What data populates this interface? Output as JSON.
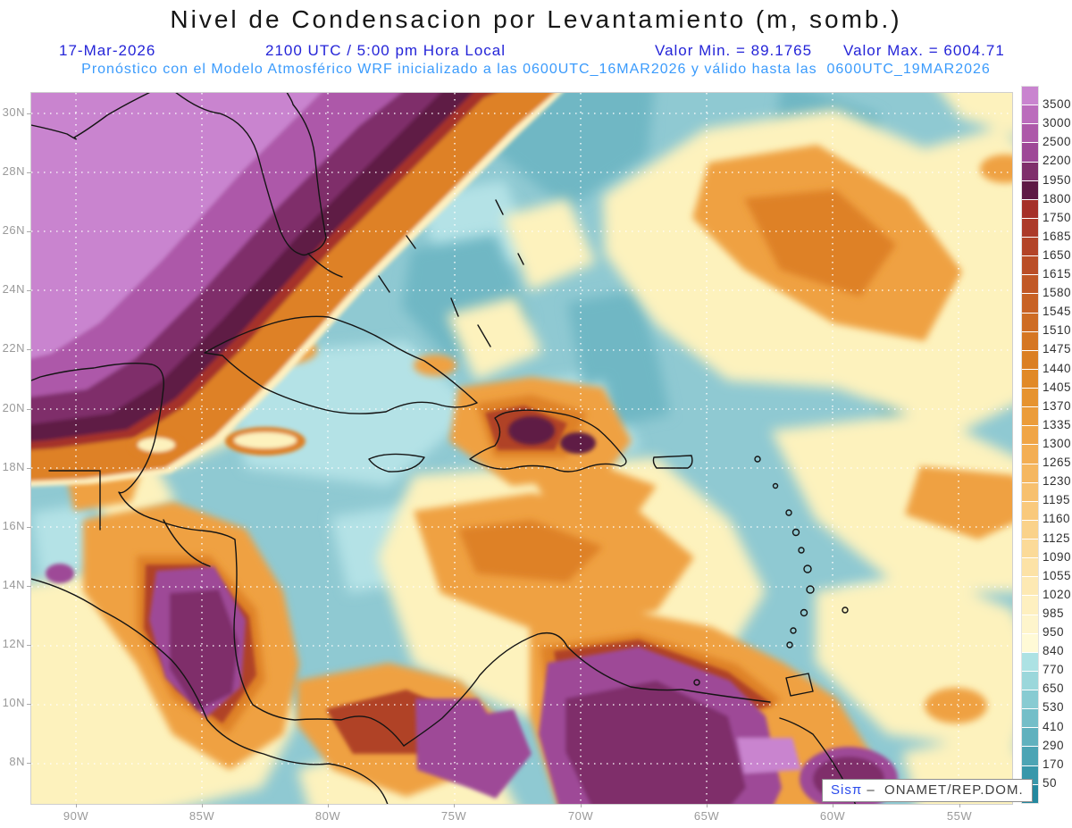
{
  "title": "Nivel de Condensacion por Levantamiento (m, somb.)",
  "header": {
    "date": "17-Mar-2026",
    "time": "2100 UTC / 5:00 pm Hora Local",
    "val_min": "Valor Min. = 89.1765",
    "val_max": "Valor Max. = 6004.71",
    "forecast": "Pronóstico con el Modelo Atmosférico WRF inicializado a las 0600UTC_16MAR2026 y válido hasta las  0600UTC_19MAR2026"
  },
  "axes": {
    "lat": [
      "30N",
      "28N",
      "26N",
      "24N",
      "22N",
      "20N",
      "18N",
      "16N",
      "14N",
      "12N",
      "10N",
      "8N"
    ],
    "lon": [
      "90W",
      "85W",
      "80W",
      "75W",
      "70W",
      "65W",
      "60W",
      "55W"
    ]
  },
  "colorbar": {
    "units": "m",
    "ticks": [
      "3500",
      "3000",
      "2500",
      "2200",
      "1950",
      "1800",
      "1750",
      "1685",
      "1650",
      "1615",
      "1580",
      "1545",
      "1510",
      "1475",
      "1440",
      "1405",
      "1370",
      "1335",
      "1300",
      "1265",
      "1230",
      "1195",
      "1160",
      "1125",
      "1090",
      "1055",
      "1020",
      "985",
      "950",
      "840",
      "770",
      "650",
      "530",
      "410",
      "290",
      "170",
      "50"
    ],
    "colors": [
      "#c984cf",
      "#bb6cbc",
      "#ad59a9",
      "#9e4897",
      "#7f2f6b",
      "#5e1a45",
      "#a53029",
      "#ac3a29",
      "#b34428",
      "#ba4e27",
      "#c15826",
      "#c86225",
      "#ce6c24",
      "#d57623",
      "#db7f23",
      "#e18926",
      "#e6932f",
      "#eb9c3a",
      "#f0a546",
      "#f3ae53",
      "#f5b760",
      "#f7c06e",
      "#f9c97c",
      "#fad28a",
      "#fbda98",
      "#fce2a6",
      "#fde9b3",
      "#fef0c0",
      "#fef5cc",
      "#fffad6",
      "#ade2e4",
      "#9bd7db",
      "#88cbd2",
      "#74bec8",
      "#60b1be",
      "#4ca4b4",
      "#3897aa",
      "#24899f"
    ]
  },
  "watermark": {
    "brand": "Sisπ",
    "sep": " –  ",
    "org": "ONAMET/REP.DOM."
  }
}
